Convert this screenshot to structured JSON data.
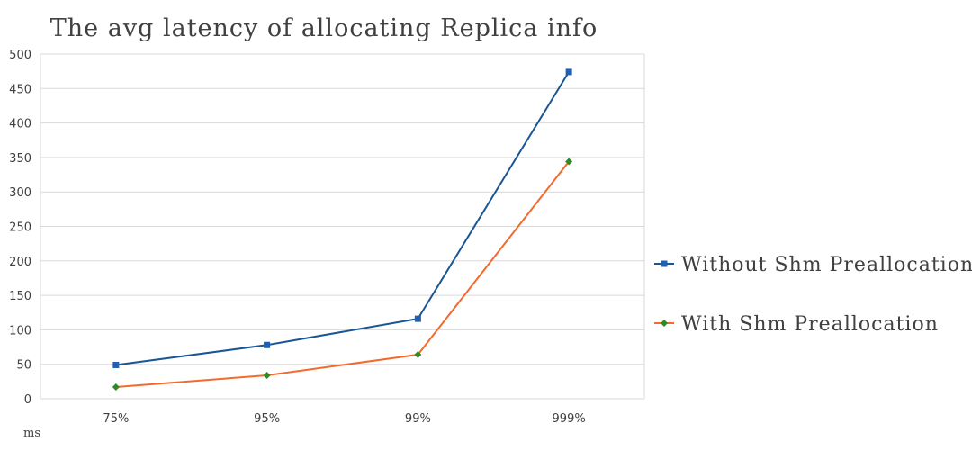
{
  "chart_data": {
    "type": "line",
    "title": "The avg latency of allocating Replica info",
    "categories": [
      "75%",
      "95%",
      "99%",
      "999%"
    ],
    "ylim": [
      0,
      500
    ],
    "yticks": [
      0,
      50,
      100,
      150,
      200,
      250,
      300,
      350,
      400,
      450,
      500
    ],
    "ylabel": "ms",
    "grid": true,
    "legend_position": "right",
    "series": [
      {
        "name": "Without Shm Preallocation",
        "values": [
          49,
          78,
          116,
          474
        ],
        "color": "#1a5694",
        "marker": "square",
        "marker_color": "#1f5fb4"
      },
      {
        "name": "With Shm Preallocation",
        "values": [
          17,
          34,
          64,
          344
        ],
        "color": "#f26a2d",
        "marker": "diamond",
        "marker_color": "#2e8b24"
      }
    ]
  }
}
